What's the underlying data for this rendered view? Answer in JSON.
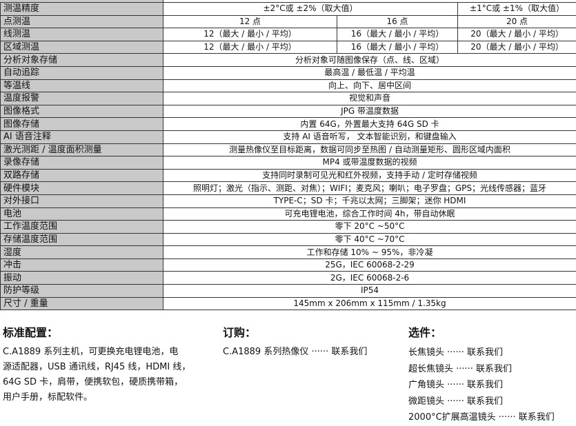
{
  "rows": [
    {
      "label": "测温精度",
      "cells": [
        "±2°C或 ±2%（取大值）",
        "±1°C或 ±1%（取大值）"
      ],
      "type": "split2"
    },
    {
      "label": "点测温",
      "cells": [
        "12 点",
        "16 点",
        "20 点"
      ],
      "type": "split3"
    },
    {
      "label": "线测温",
      "cells": [
        "12（最大 / 最小 / 平均）",
        "16（最大 / 最小 / 平均）",
        "20（最大 / 最小 / 平均）"
      ],
      "type": "split3"
    },
    {
      "label": "区域测温",
      "cells": [
        "12（最大 / 最小 / 平均）",
        "16（最大 / 最小 / 平均）",
        "20（最大 / 最小 / 平均）"
      ],
      "type": "split3"
    },
    {
      "label": "分析对象存储",
      "cells": [
        "分析对象可随图像保存（点、线、区域）"
      ]
    },
    {
      "label": "自动追踪",
      "cells": [
        "最高温 / 最低温 / 平均温"
      ]
    },
    {
      "label": "等温线",
      "cells": [
        "向上、向下、居中区间"
      ]
    },
    {
      "label": "温度报警",
      "cells": [
        "视觉和声音"
      ]
    },
    {
      "label": "图像格式",
      "cells": [
        "JPG 带温度数据"
      ]
    },
    {
      "label": "图像存储",
      "cells": [
        "内置 64G，外置最大支持 64G SD 卡"
      ]
    },
    {
      "label": "AI 语音注释",
      "cells": [
        "支持 AI 语音听写， 文本智能识别，和键盘输入"
      ]
    },
    {
      "label": "激光测距 / 温度面积测量",
      "cells": [
        "测量热像仪至目标距离，数据可同步至热图 / 自动测量矩形、圆形区域内面积"
      ]
    },
    {
      "label": "录像存储",
      "cells": [
        "MP4 或带温度数据的视频"
      ]
    },
    {
      "label": "双路存储",
      "cells": [
        "支持同时录制可见光和红外视频，支持手动 / 定时存储视频"
      ]
    },
    {
      "label": "硬件模块",
      "cells": [
        "照明灯；激光（指示、测距、对焦）；WIFI；麦克风；喇叭；电子罗盘；GPS；光线传感器；蓝牙"
      ]
    },
    {
      "label": "对外接口",
      "cells": [
        "TYPE-C；SD 卡；千兆以太网；三脚架；迷你 HDMI"
      ]
    },
    {
      "label": "电池",
      "cells": [
        "可充电锂电池，综合工作时间 4h，带自动休眠"
      ]
    },
    {
      "label": "工作温度范围",
      "cells": [
        "零下 20°C ~50°C"
      ]
    },
    {
      "label": "存储温度范围",
      "cells": [
        "零下 40°C ~70°C"
      ]
    },
    {
      "label": "湿度",
      "cells": [
        "工作和存储 10% ~ 95%，非冷凝"
      ]
    },
    {
      "label": "冲击",
      "cells": [
        "25G，IEC 60068-2-29"
      ]
    },
    {
      "label": "振动",
      "cells": [
        "2G，IEC 60068-2-6"
      ]
    },
    {
      "label": "防护等级",
      "cells": [
        "IP54"
      ]
    },
    {
      "label": "尺寸 / 重量",
      "cells": [
        "145mm x 206mm x 115mm / 1.35kg"
      ]
    }
  ],
  "standard": {
    "title": "标准配置：",
    "lines": [
      "C.A1889 系列主机，可更换充电锂电池，电",
      "源适配器，USB 通讯线，RJ45 线，HDMI 线，",
      "64G SD 卡，肩带，便携软包，硬质携带箱，",
      "用户手册，标配软件。"
    ]
  },
  "order": {
    "title": "订购：",
    "lines": [
      "C.A1889 系列热像仪 ······ 联系我们"
    ]
  },
  "options": {
    "title": "选件：",
    "lines": [
      "长焦镜头 ······ 联系我们",
      "超长焦镜头 ······ 联系我们",
      "广角镜头 ······ 联系我们",
      "微距镜头 ······ 联系我们",
      "2000°C扩展高温镜头 ······ 联系我们"
    ]
  },
  "colors": {
    "label_bg": "#c9c9c9",
    "border": "#333333"
  }
}
